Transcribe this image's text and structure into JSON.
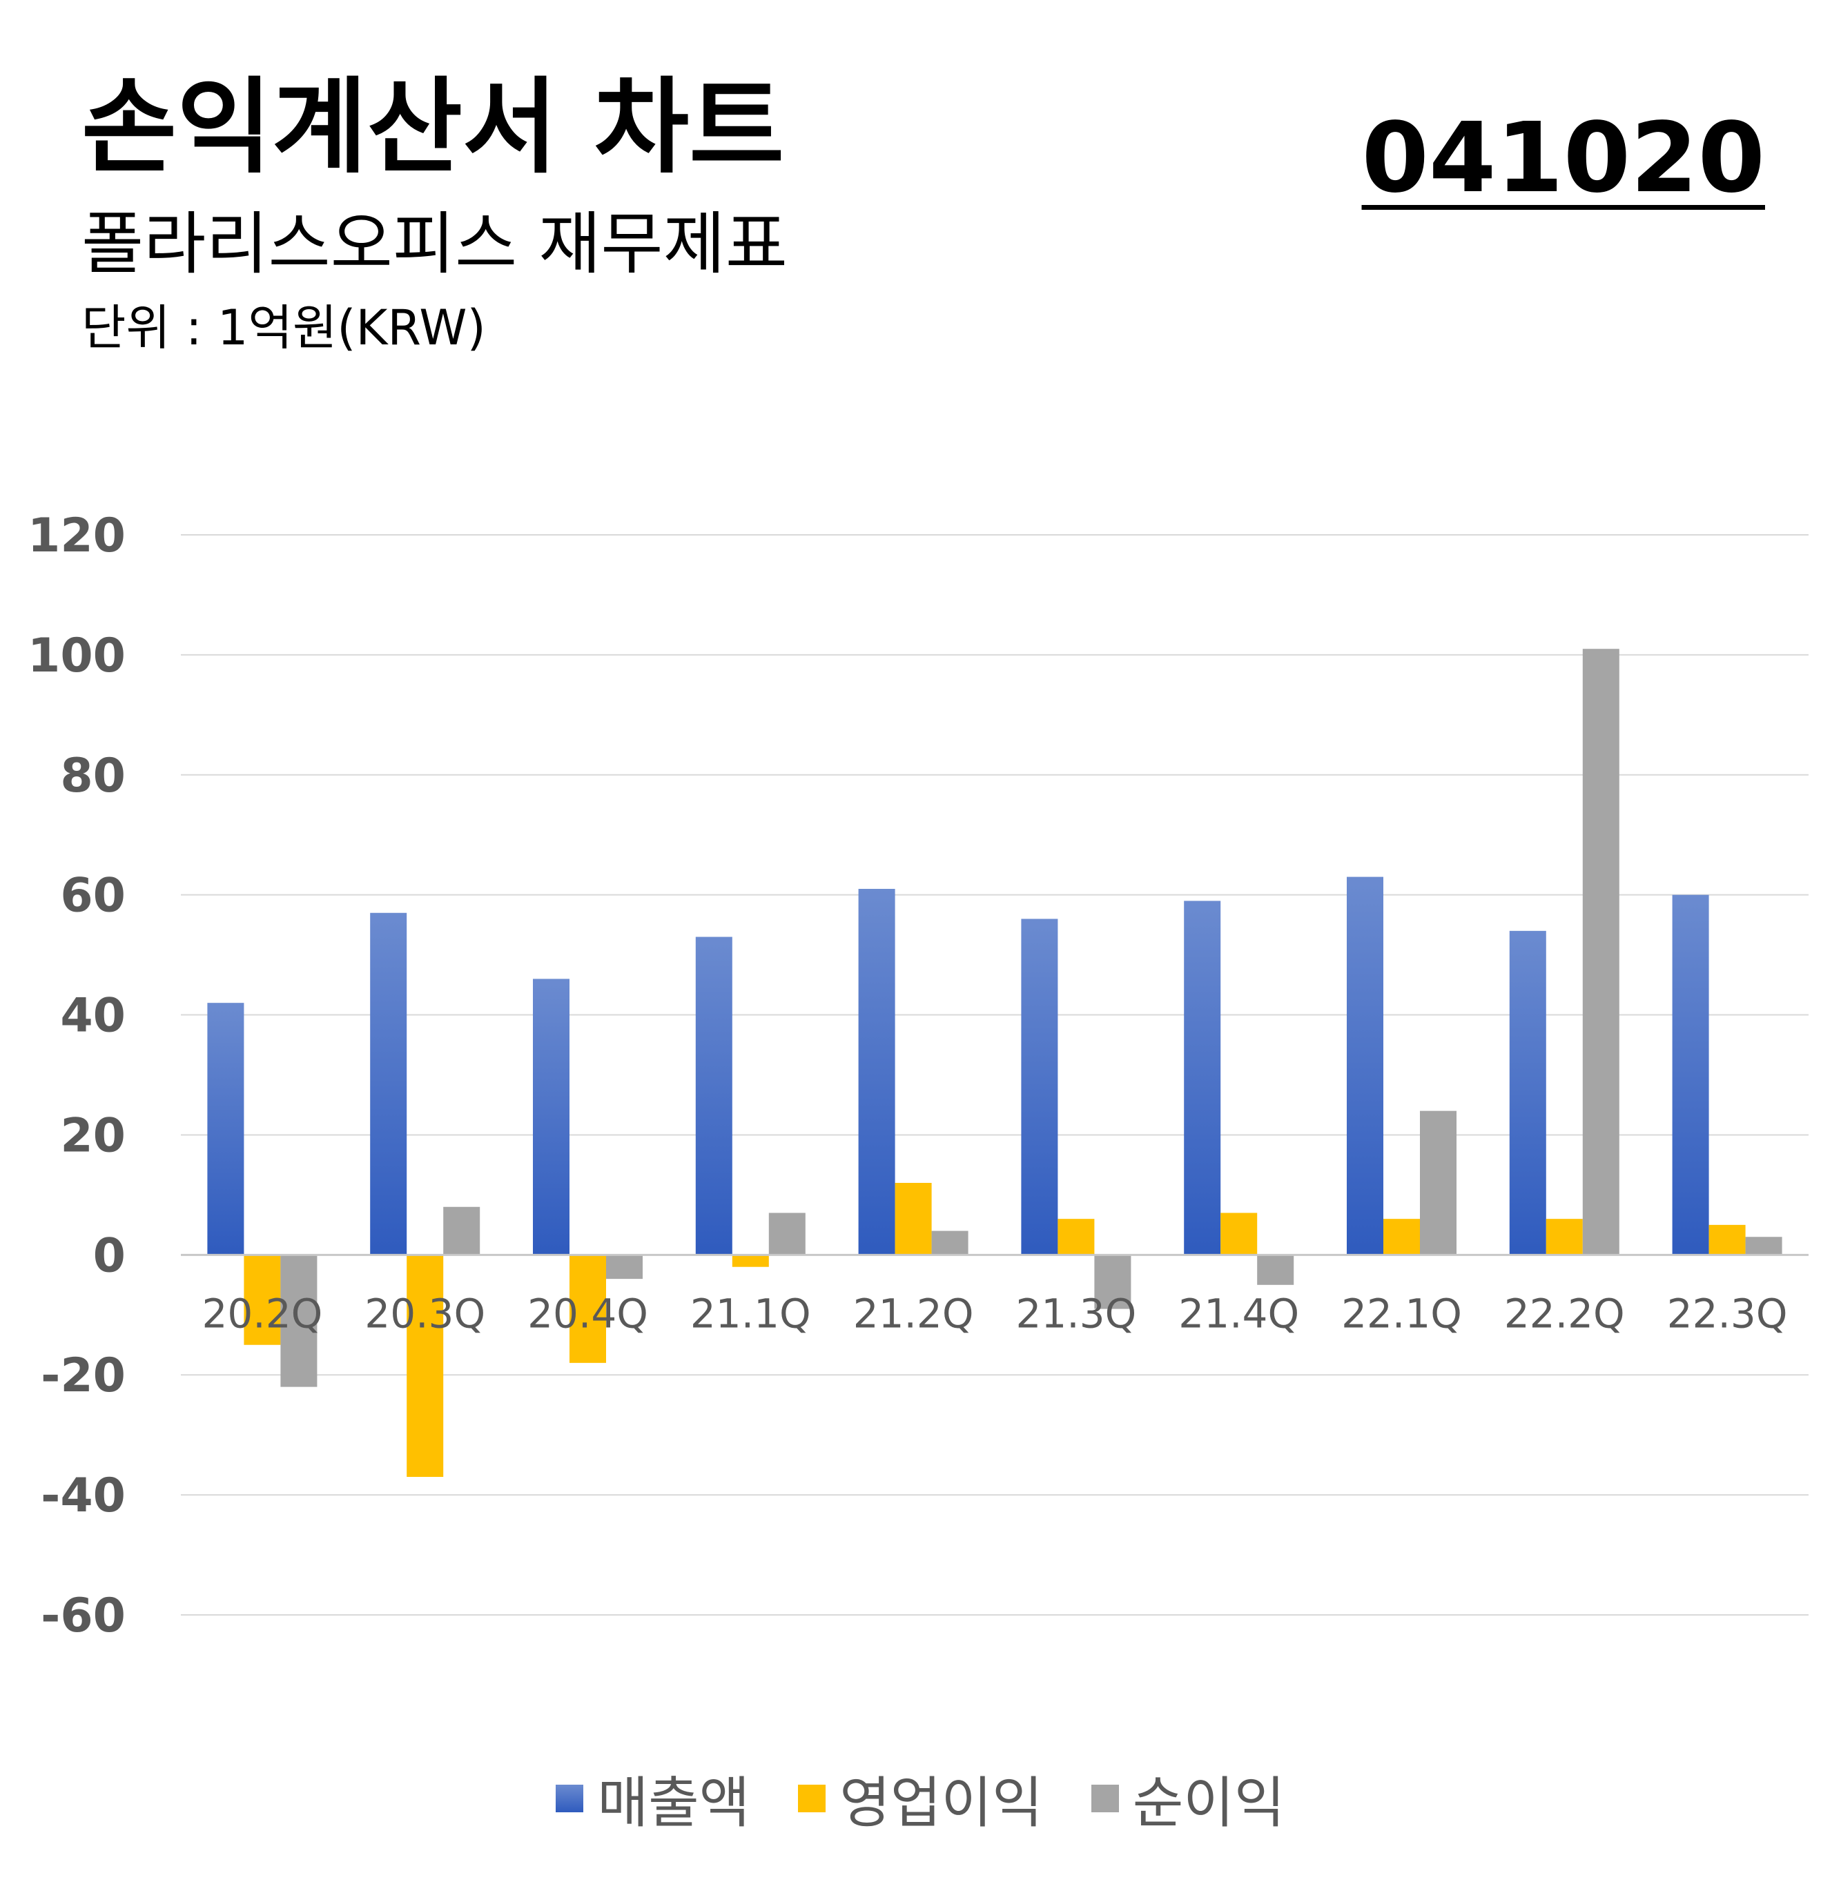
{
  "header": {
    "title": "손익계산서 차트",
    "code": "041020",
    "subtitle": "폴라리스오피스 재무제표",
    "unit": "단위 : 1억원(KRW)"
  },
  "chart_data": {
    "type": "bar",
    "categories": [
      "20.2Q",
      "20.3Q",
      "20.4Q",
      "21.1Q",
      "21.2Q",
      "21.3Q",
      "21.4Q",
      "22.1Q",
      "22.2Q",
      "22.3Q"
    ],
    "series": [
      {
        "name": "매출액",
        "color": "#4472C4",
        "values": [
          42,
          57,
          46,
          53,
          61,
          56,
          59,
          63,
          54,
          60
        ]
      },
      {
        "name": "영업이익",
        "color": "#FFC000",
        "values": [
          -15,
          -37,
          -18,
          -2,
          12,
          6,
          7,
          6,
          6,
          5
        ]
      },
      {
        "name": "순이익",
        "color": "#A5A5A5",
        "values": [
          -22,
          8,
          -4,
          7,
          4,
          -9,
          -5,
          24,
          101,
          3
        ]
      }
    ],
    "ylim": [
      -60,
      120
    ],
    "yticks": [
      120,
      100,
      80,
      60,
      40,
      20,
      0,
      -20,
      -40,
      -60
    ],
    "grid": true,
    "legend_position": "bottom"
  }
}
